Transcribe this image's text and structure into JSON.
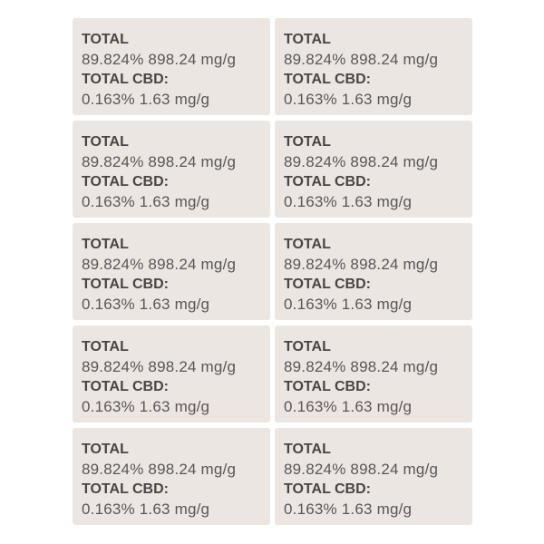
{
  "labels": [
    {
      "total_heading": "TOTAL",
      "total_value": "89.824% 898.24 mg/g",
      "cbd_heading": "TOTAL CBD:",
      "cbd_value": "0.163% 1.63 mg/g"
    },
    {
      "total_heading": "TOTAL",
      "total_value": "89.824% 898.24 mg/g",
      "cbd_heading": "TOTAL CBD:",
      "cbd_value": "0.163% 1.63 mg/g"
    },
    {
      "total_heading": "TOTAL",
      "total_value": "89.824% 898.24 mg/g",
      "cbd_heading": "TOTAL CBD:",
      "cbd_value": "0.163% 1.63 mg/g"
    },
    {
      "total_heading": "TOTAL",
      "total_value": "89.824% 898.24 mg/g",
      "cbd_heading": "TOTAL CBD:",
      "cbd_value": "0.163% 1.63 mg/g"
    },
    {
      "total_heading": "TOTAL",
      "total_value": "89.824% 898.24 mg/g",
      "cbd_heading": "TOTAL CBD:",
      "cbd_value": "0.163% 1.63 mg/g"
    },
    {
      "total_heading": "TOTAL",
      "total_value": "89.824% 898.24 mg/g",
      "cbd_heading": "TOTAL CBD:",
      "cbd_value": "0.163% 1.63 mg/g"
    },
    {
      "total_heading": "TOTAL",
      "total_value": "89.824% 898.24 mg/g",
      "cbd_heading": "TOTAL CBD:",
      "cbd_value": "0.163% 1.63 mg/g"
    },
    {
      "total_heading": "TOTAL",
      "total_value": "89.824% 898.24 mg/g",
      "cbd_heading": "TOTAL CBD:",
      "cbd_value": "0.163% 1.63 mg/g"
    },
    {
      "total_heading": "TOTAL",
      "total_value": "89.824% 898.24 mg/g",
      "cbd_heading": "TOTAL CBD:",
      "cbd_value": "0.163% 1.63 mg/g"
    },
    {
      "total_heading": "TOTAL",
      "total_value": "89.824% 898.24 mg/g",
      "cbd_heading": "TOTAL CBD:",
      "cbd_value": "0.163% 1.63 mg/g"
    }
  ],
  "colors": {
    "card_background": "#ece6e2",
    "text": "#4f4b49",
    "page_background": "#ffffff"
  }
}
